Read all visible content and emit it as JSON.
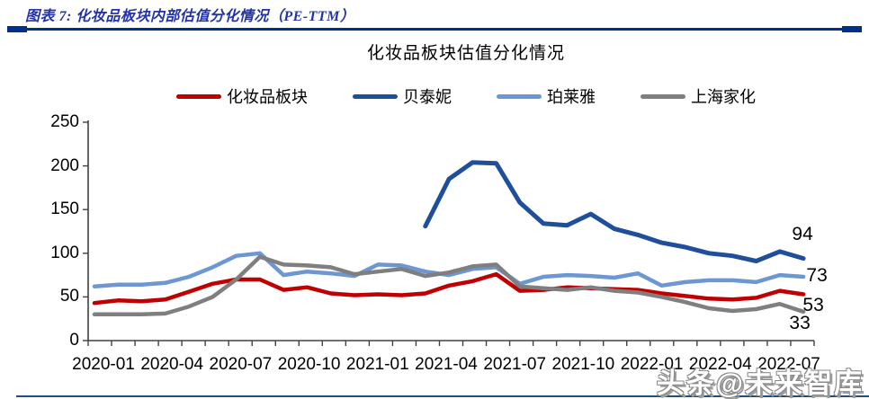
{
  "figure": {
    "caption": "图表 7:  化妆品板块内部估值分化情况（PE-TTM）",
    "watermark": "头条@未来智库"
  },
  "chart_data": {
    "type": "line",
    "title": "化妆品板块估值分化情况",
    "grid": false,
    "legend_position": "top",
    "ylim": [
      0,
      250
    ],
    "y_ticks": [
      0,
      50,
      100,
      150,
      200,
      250
    ],
    "x": [
      "2020-01",
      "2020-02",
      "2020-03",
      "2020-04",
      "2020-05",
      "2020-06",
      "2020-07",
      "2020-08",
      "2020-09",
      "2020-10",
      "2020-11",
      "2020-12",
      "2021-01",
      "2021-02",
      "2021-03",
      "2021-04",
      "2021-05",
      "2021-06",
      "2021-07",
      "2021-08",
      "2021-09",
      "2021-10",
      "2021-11",
      "2021-12",
      "2022-01",
      "2022-02",
      "2022-03",
      "2022-04",
      "2022-05",
      "2022-06",
      "2022-07"
    ],
    "x_tick_labels": [
      "2020-01",
      "2020-04",
      "2020-07",
      "2020-10",
      "2021-01",
      "2021-04",
      "2021-07",
      "2021-10",
      "2022-01",
      "2022-04",
      "2022-07"
    ],
    "series": [
      {
        "name": "化妆品板块",
        "color": "#C00000",
        "end_label": "53",
        "values": [
          43,
          46,
          45,
          47,
          56,
          65,
          70,
          70,
          58,
          61,
          54,
          52,
          53,
          52,
          54,
          63,
          68,
          76,
          57,
          58,
          61,
          60,
          59,
          58,
          54,
          51,
          48,
          47,
          49,
          57,
          53
        ]
      },
      {
        "name": "贝泰妮",
        "color": "#1F4E9B",
        "end_label": "94",
        "values": [
          null,
          null,
          null,
          null,
          null,
          null,
          null,
          null,
          null,
          null,
          null,
          null,
          null,
          null,
          131,
          185,
          204,
          203,
          158,
          134,
          132,
          145,
          128,
          121,
          112,
          107,
          100,
          97,
          91,
          102,
          94
        ]
      },
      {
        "name": "珀莱雅",
        "color": "#6D97D2",
        "end_label": "73",
        "values": [
          62,
          64,
          64,
          66,
          73,
          84,
          97,
          100,
          75,
          79,
          77,
          74,
          87,
          86,
          79,
          75,
          82,
          84,
          65,
          73,
          75,
          74,
          72,
          77,
          63,
          67,
          69,
          69,
          67,
          75,
          73
        ]
      },
      {
        "name": "上海家化",
        "color": "#7F7F7F",
        "end_label": "33",
        "values": [
          30,
          30,
          30,
          31,
          39,
          50,
          70,
          96,
          87,
          86,
          84,
          76,
          79,
          82,
          74,
          78,
          85,
          87,
          62,
          60,
          58,
          61,
          57,
          55,
          50,
          44,
          37,
          34,
          36,
          42,
          33
        ]
      }
    ]
  }
}
